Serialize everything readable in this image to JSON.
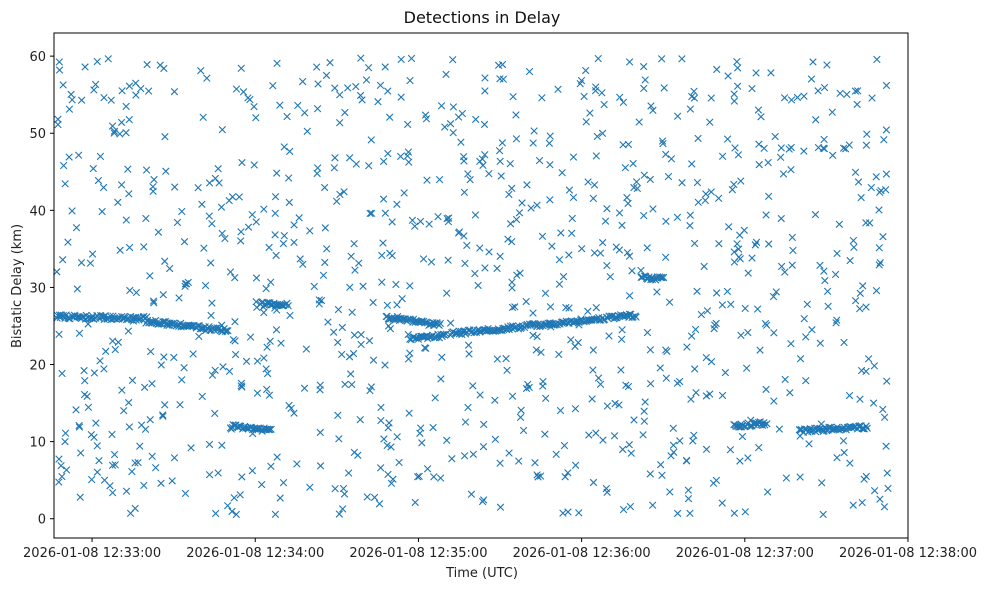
{
  "chart_data": {
    "type": "scatter",
    "title": "Detections in Delay",
    "xlabel": "Time (UTC)",
    "ylabel": "Bistatic Delay (km)",
    "marker": "x",
    "color": "#1f77b4",
    "grid": false,
    "x_ticks": [
      "2026-01-08 12:33:00",
      "2026-01-08 12:34:00",
      "2026-01-08 12:35:00",
      "2026-01-08 12:36:00",
      "2026-01-08 12:37:00",
      "2026-01-08 12:38:00"
    ],
    "xlim": [
      "2026-01-08 12:32:46",
      "2026-01-08 12:38:00"
    ],
    "y_ticks": [
      0,
      10,
      20,
      30,
      40,
      50,
      60
    ],
    "ylim": [
      -2.5,
      63
    ],
    "point_count": 1500,
    "tracks": [
      {
        "x_start": "2026-01-08 12:32:47",
        "x_end": "2026-01-08 12:33:20",
        "y_start": 26.2,
        "y_end": 26.0
      },
      {
        "x_start": "2026-01-08 12:33:20",
        "x_end": "2026-01-08 12:33:50",
        "y_start": 25.6,
        "y_end": 24.4
      },
      {
        "x_start": "2026-01-08 12:33:51",
        "x_end": "2026-01-08 12:34:06",
        "y_start": 12.0,
        "y_end": 11.5
      },
      {
        "x_start": "2026-01-08 12:34:02",
        "x_end": "2026-01-08 12:34:12",
        "y_start": 27.9,
        "y_end": 27.8
      },
      {
        "x_start": "2026-01-08 12:34:48",
        "x_end": "2026-01-08 12:35:08",
        "y_start": 26.2,
        "y_end": 25.1
      },
      {
        "x_start": "2026-01-08 12:34:57",
        "x_end": "2026-01-08 12:35:10",
        "y_start": 23.3,
        "y_end": 23.8
      },
      {
        "x_start": "2026-01-08 12:35:12",
        "x_end": "2026-01-08 12:36:20",
        "y_start": 24.0,
        "y_end": 26.4
      },
      {
        "x_start": "2026-01-08 12:36:22",
        "x_end": "2026-01-08 12:36:30",
        "y_start": 31.3,
        "y_end": 31.1
      },
      {
        "x_start": "2026-01-08 12:36:56",
        "x_end": "2026-01-08 12:37:08",
        "y_start": 12.0,
        "y_end": 12.4
      },
      {
        "x_start": "2026-01-08 12:37:20",
        "x_end": "2026-01-08 12:37:45",
        "y_start": 11.4,
        "y_end": 11.9
      }
    ]
  }
}
